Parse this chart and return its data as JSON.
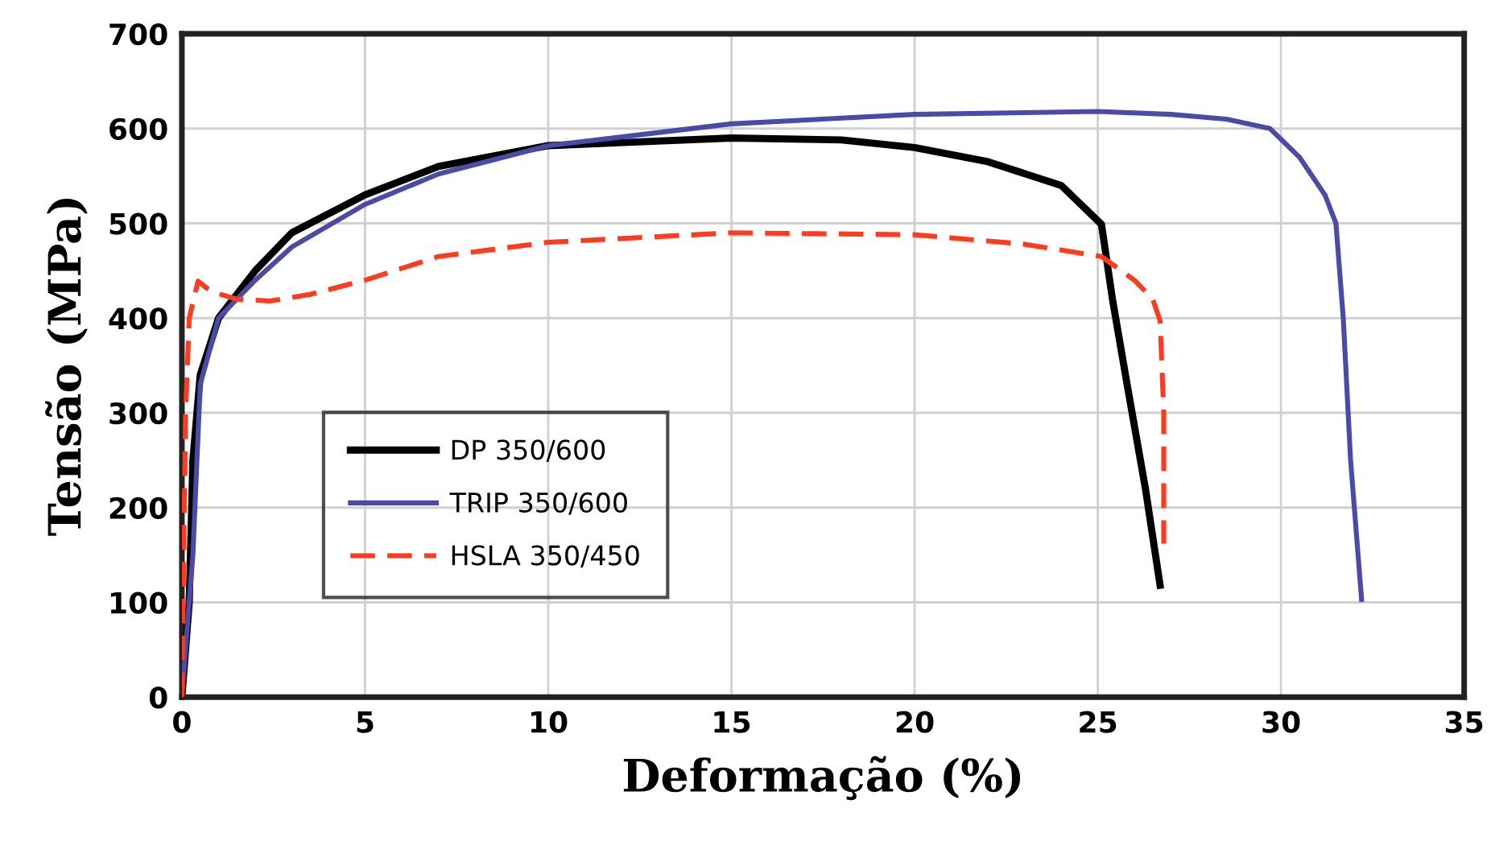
{
  "chart_data": {
    "type": "line",
    "xlabel": "Deformação (%)",
    "ylabel": "Tensão (MPa)",
    "xlim": [
      0,
      35
    ],
    "xticks": [
      0,
      5,
      10,
      15,
      20,
      25,
      30,
      35
    ],
    "ylim": [
      0,
      700
    ],
    "yticks": [
      0,
      100,
      200,
      300,
      400,
      500,
      600,
      700
    ],
    "grid": true,
    "legend": "lower left",
    "series": [
      {
        "name": "DP 350/600",
        "color": "#000000",
        "line_style": "solid",
        "x": [
          0,
          0.2,
          0.3,
          0.5,
          1,
          2,
          3,
          5,
          7,
          10,
          15,
          18,
          20,
          22,
          24,
          25.1,
          25.4,
          25.8,
          26.3,
          26.7
        ],
        "values": [
          0,
          100,
          250,
          340,
          400,
          450,
          490,
          530,
          560,
          582,
          590,
          588,
          580,
          565,
          540,
          499,
          420,
          330,
          220,
          118
        ]
      },
      {
        "name": "TRIP 350/600",
        "color": "#4a4aa8",
        "line_style": "solid",
        "x": [
          0,
          0.3,
          0.5,
          1,
          2,
          3,
          5,
          7,
          10,
          15,
          20,
          25,
          27,
          28.5,
          29.7,
          30.5,
          31.2,
          31.5,
          31.7,
          31.9,
          32.2
        ],
        "values": [
          0,
          150,
          330,
          400,
          440,
          475,
          520,
          552,
          582,
          605,
          615,
          618,
          615,
          610,
          600,
          570,
          530,
          500,
          400,
          250,
          103
        ]
      },
      {
        "name": "HSLA 350/450",
        "color": "#ff3b1f",
        "line_style": "dashed",
        "x": [
          0,
          0.1,
          0.2,
          0.44,
          0.8,
          1.5,
          2.4,
          3.5,
          5,
          7,
          10,
          15,
          20,
          23,
          25.1,
          26,
          26.5,
          26.7,
          26.8,
          26.8
        ],
        "values": [
          0,
          300,
          400,
          439,
          428,
          420,
          418,
          425,
          440,
          465,
          480,
          490,
          488,
          478,
          465,
          440,
          420,
          397,
          300,
          162
        ]
      }
    ]
  }
}
